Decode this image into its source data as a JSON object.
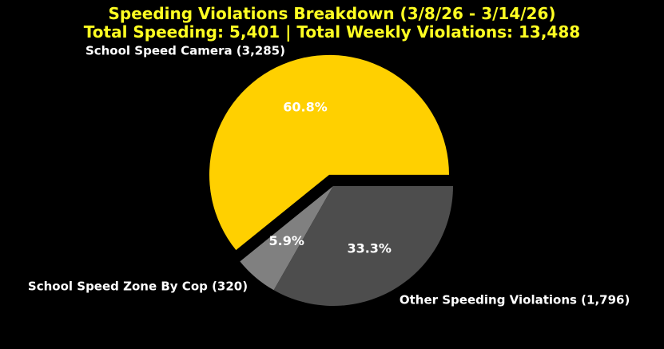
{
  "chart_data": {
    "type": "pie",
    "title": "Speeding Violations Breakdown (3/8/26 - 3/14/26)",
    "subtitle": "Total Speeding: 5,401 | Total Weekly Violations: 13,488",
    "slices": [
      {
        "label": "School Speed Camera (3,285)",
        "value": 3285,
        "percent_label": "60.8%",
        "color": "#ffd000",
        "exploded": true
      },
      {
        "label": "School Speed Zone By Cop (320)",
        "value": 320,
        "percent_label": "5.9%",
        "color": "#808080",
        "exploded": false
      },
      {
        "label": "Other Speeding Violations (1,796)",
        "value": 1796,
        "percent_label": "33.3%",
        "color": "#4d4d4d",
        "exploded": false
      }
    ],
    "start_angle_deg": 0,
    "direction": "counterclockwise",
    "title_color": "#ffff22",
    "label_color": "#ffffff",
    "background": "#000000"
  }
}
